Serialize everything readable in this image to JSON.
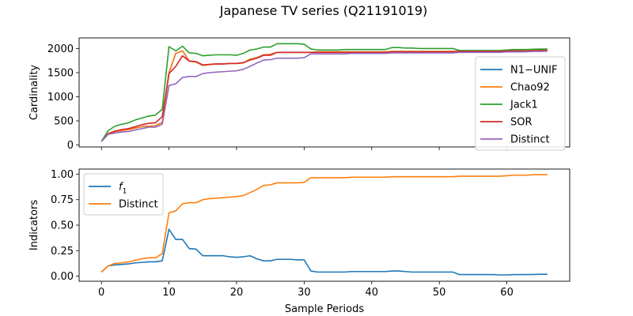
{
  "figure": {
    "title": "Japanese TV series (Q21191019)"
  },
  "chart_data": [
    {
      "type": "line",
      "ylabel": "Cardinality",
      "xlim": [
        -3.3,
        69.3
      ],
      "ylim": [
        -40,
        2220
      ],
      "xticks": [
        0,
        10,
        20,
        30,
        40,
        50,
        60
      ],
      "yticks": [
        0,
        500,
        1000,
        1500,
        2000
      ],
      "legend": "right",
      "x": [
        0,
        1,
        2,
        3,
        4,
        5,
        6,
        7,
        8,
        9,
        10,
        11,
        12,
        13,
        14,
        15,
        16,
        17,
        18,
        19,
        20,
        21,
        22,
        23,
        24,
        25,
        26,
        27,
        28,
        29,
        30,
        31,
        32,
        33,
        34,
        35,
        36,
        37,
        38,
        39,
        40,
        41,
        42,
        43,
        44,
        45,
        46,
        47,
        48,
        49,
        50,
        51,
        52,
        53,
        54,
        55,
        56,
        57,
        58,
        59,
        60,
        61,
        62,
        63,
        64,
        65,
        66
      ],
      "series": [
        {
          "name": "N1−UNIF",
          "color": "#1f77b4",
          "values": [
            75,
            240,
            280,
            300,
            320,
            350,
            380,
            390,
            400,
            470,
            1500,
            1900,
            1950,
            1740,
            1720,
            1650,
            1670,
            1680,
            1680,
            1690,
            1690,
            1700,
            1780,
            1810,
            1870,
            1880,
            1920,
            1920,
            1920,
            1920,
            1920,
            1920,
            1930,
            1930,
            1930,
            1930,
            1930,
            1930,
            1930,
            1930,
            1930,
            1930,
            1930,
            1940,
            1940,
            1940,
            1940,
            1940,
            1940,
            1940,
            1940,
            1940,
            1940,
            1950,
            1950,
            1950,
            1950,
            1950,
            1950,
            1950,
            1960,
            1960,
            1960,
            1960,
            1960,
            1965,
            1970
          ]
        },
        {
          "name": "Chao92",
          "color": "#ff7f0e",
          "values": [
            75,
            240,
            280,
            300,
            320,
            350,
            380,
            390,
            400,
            470,
            1500,
            1900,
            1950,
            1740,
            1720,
            1650,
            1670,
            1680,
            1680,
            1690,
            1690,
            1700,
            1780,
            1810,
            1870,
            1880,
            1920,
            1920,
            1920,
            1920,
            1920,
            1920,
            1930,
            1930,
            1930,
            1930,
            1930,
            1930,
            1930,
            1930,
            1930,
            1930,
            1930,
            1940,
            1940,
            1940,
            1940,
            1940,
            1940,
            1940,
            1940,
            1940,
            1940,
            1950,
            1950,
            1950,
            1950,
            1950,
            1950,
            1950,
            1960,
            1960,
            1960,
            1960,
            1960,
            1965,
            1970
          ]
        },
        {
          "name": "Jack1",
          "color": "#2ca02c",
          "values": [
            75,
            300,
            390,
            430,
            460,
            520,
            560,
            600,
            620,
            740,
            2040,
            1950,
            2050,
            1910,
            1900,
            1850,
            1860,
            1870,
            1870,
            1870,
            1860,
            1900,
            1970,
            1990,
            2030,
            2030,
            2100,
            2100,
            2100,
            2100,
            2090,
            1990,
            1970,
            1970,
            1970,
            1970,
            1980,
            1980,
            1980,
            1980,
            1980,
            1980,
            1980,
            2020,
            2020,
            2010,
            2010,
            2000,
            2000,
            2000,
            2000,
            2000,
            2000,
            1960,
            1960,
            1960,
            1960,
            1960,
            1960,
            1960,
            1970,
            1980,
            1980,
            1980,
            1985,
            1990,
            1990
          ]
        },
        {
          "name": "SOR",
          "color": "#d62728",
          "values": [
            75,
            230,
            290,
            320,
            340,
            380,
            420,
            450,
            460,
            590,
            1480,
            1630,
            1850,
            1740,
            1730,
            1660,
            1670,
            1680,
            1680,
            1690,
            1690,
            1710,
            1760,
            1800,
            1860,
            1860,
            1920,
            1920,
            1920,
            1920,
            1920,
            1920,
            1920,
            1920,
            1920,
            1920,
            1920,
            1920,
            1920,
            1920,
            1920,
            1920,
            1920,
            1930,
            1930,
            1930,
            1930,
            1930,
            1930,
            1930,
            1930,
            1930,
            1930,
            1940,
            1940,
            1940,
            1940,
            1940,
            1940,
            1940,
            1950,
            1950,
            1950,
            1950,
            1955,
            1960,
            1960
          ]
        },
        {
          "name": "Distinct",
          "color": "#9467bd",
          "values": [
            75,
            220,
            250,
            270,
            280,
            310,
            340,
            370,
            370,
            430,
            1230,
            1270,
            1400,
            1420,
            1420,
            1480,
            1500,
            1510,
            1520,
            1530,
            1540,
            1570,
            1630,
            1700,
            1760,
            1770,
            1800,
            1800,
            1800,
            1800,
            1810,
            1890,
            1890,
            1890,
            1890,
            1890,
            1890,
            1900,
            1900,
            1900,
            1900,
            1900,
            1900,
            1910,
            1910,
            1910,
            1910,
            1910,
            1910,
            1910,
            1910,
            1910,
            1910,
            1920,
            1920,
            1920,
            1920,
            1920,
            1920,
            1920,
            1930,
            1930,
            1930,
            1935,
            1940,
            1940,
            1945
          ]
        }
      ]
    },
    {
      "type": "line",
      "xlabel": "Sample Periods",
      "ylabel": "Indicators",
      "xlim": [
        -3.3,
        69.3
      ],
      "ylim": [
        -0.05,
        1.05
      ],
      "xticks": [
        0,
        10,
        20,
        30,
        40,
        50,
        60
      ],
      "yticks": [
        "0.00",
        "0.25",
        "0.50",
        "0.75",
        "1.00"
      ],
      "legend": "upper-left",
      "x": [
        0,
        1,
        2,
        3,
        4,
        5,
        6,
        7,
        8,
        9,
        10,
        11,
        12,
        13,
        14,
        15,
        16,
        17,
        18,
        19,
        20,
        21,
        22,
        23,
        24,
        25,
        26,
        27,
        28,
        29,
        30,
        31,
        32,
        33,
        34,
        35,
        36,
        37,
        38,
        39,
        40,
        41,
        42,
        43,
        44,
        45,
        46,
        47,
        48,
        49,
        50,
        51,
        52,
        53,
        54,
        55,
        56,
        57,
        58,
        59,
        60,
        61,
        62,
        63,
        64,
        65,
        66
      ],
      "series": [
        {
          "name": "f1",
          "name_base": "f",
          "name_sub": "1",
          "color": "#1f77b4",
          "values": [
            0.04,
            0.1,
            0.11,
            0.115,
            0.12,
            0.13,
            0.135,
            0.14,
            0.14,
            0.15,
            0.46,
            0.36,
            0.36,
            0.27,
            0.265,
            0.2,
            0.2,
            0.2,
            0.2,
            0.19,
            0.185,
            0.19,
            0.2,
            0.17,
            0.15,
            0.15,
            0.165,
            0.165,
            0.165,
            0.16,
            0.16,
            0.05,
            0.04,
            0.04,
            0.04,
            0.04,
            0.04,
            0.045,
            0.045,
            0.045,
            0.045,
            0.045,
            0.045,
            0.05,
            0.05,
            0.045,
            0.04,
            0.04,
            0.04,
            0.04,
            0.04,
            0.04,
            0.04,
            0.015,
            0.015,
            0.015,
            0.015,
            0.015,
            0.015,
            0.012,
            0.012,
            0.015,
            0.015,
            0.015,
            0.016,
            0.018,
            0.018
          ]
        },
        {
          "name": "Distinct",
          "color": "#ff7f0e",
          "values": [
            0.04,
            0.1,
            0.125,
            0.13,
            0.14,
            0.155,
            0.17,
            0.18,
            0.18,
            0.22,
            0.62,
            0.64,
            0.71,
            0.72,
            0.72,
            0.75,
            0.76,
            0.765,
            0.77,
            0.775,
            0.78,
            0.79,
            0.82,
            0.85,
            0.89,
            0.895,
            0.915,
            0.915,
            0.915,
            0.915,
            0.92,
            0.965,
            0.965,
            0.965,
            0.965,
            0.965,
            0.965,
            0.97,
            0.97,
            0.97,
            0.97,
            0.97,
            0.97,
            0.975,
            0.975,
            0.975,
            0.975,
            0.975,
            0.975,
            0.975,
            0.975,
            0.975,
            0.975,
            0.98,
            0.98,
            0.98,
            0.98,
            0.98,
            0.98,
            0.98,
            0.985,
            0.99,
            0.99,
            0.99,
            0.995,
            0.995,
            0.995
          ]
        }
      ]
    }
  ]
}
